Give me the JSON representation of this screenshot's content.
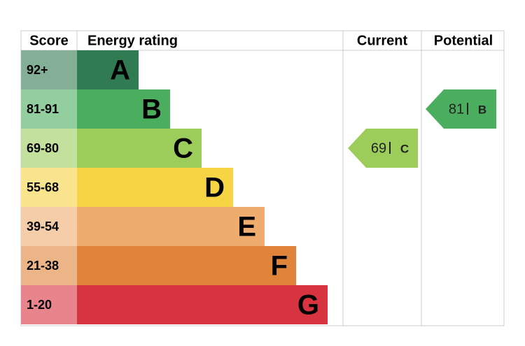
{
  "headers": {
    "score": "Score",
    "rating": "Energy rating",
    "current": "Current",
    "potential": "Potential"
  },
  "rows": [
    {
      "score": "92+",
      "rating": "A",
      "color": "#317b52"
    },
    {
      "score": "81-91",
      "rating": "B",
      "color": "#4bae5f"
    },
    {
      "score": "69-80",
      "rating": "C",
      "color": "#9ccc5a"
    },
    {
      "score": "55-68",
      "rating": "D",
      "color": "#f7d443"
    },
    {
      "score": "39-54",
      "rating": "E",
      "color": "#eeac6e"
    },
    {
      "score": "21-38",
      "rating": "F",
      "color": "#e0843a"
    },
    {
      "score": "1-20",
      "rating": "G",
      "color": "#d73340"
    }
  ],
  "current": {
    "value": 69,
    "rating": "C"
  },
  "potential": {
    "value": 81,
    "rating": "B"
  }
}
